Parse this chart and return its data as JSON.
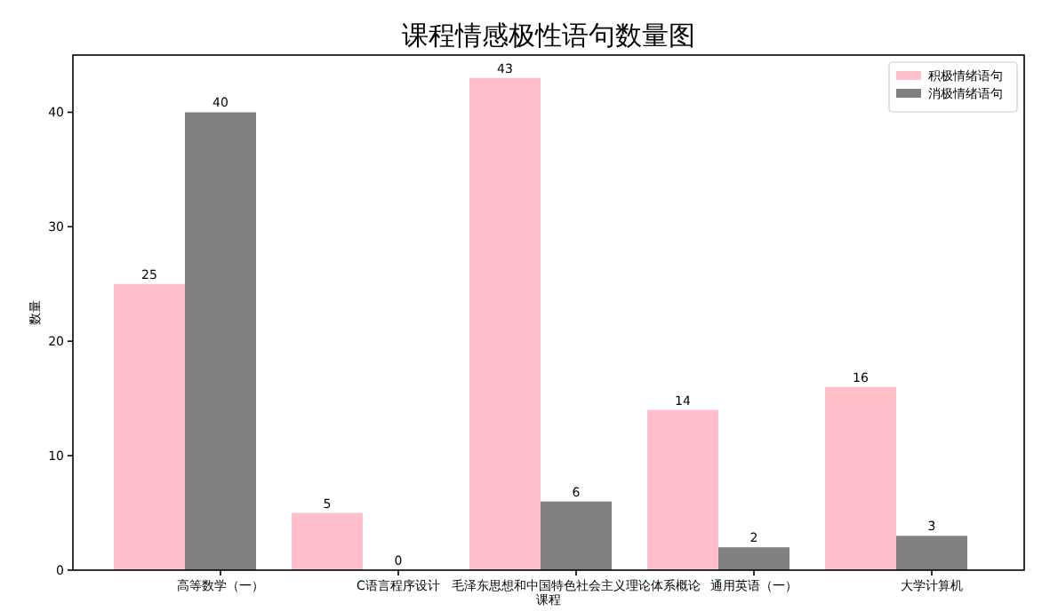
{
  "chart_data": {
    "type": "bar",
    "title": "课程情感极性语句数量图",
    "xlabel": "课程",
    "ylabel": "数量",
    "categories": [
      "高等数学（一）",
      "C语言程序设计",
      "毛泽东思想和中国特色社会主义理论体系概论",
      "通用英语（一）",
      "大学计算机"
    ],
    "series": [
      {
        "name": "积极情绪语句",
        "color": "#ffc0cb",
        "values": [
          25,
          5,
          43,
          14,
          16
        ]
      },
      {
        "name": "消极情绪语句",
        "color": "#808080",
        "values": [
          40,
          0,
          6,
          2,
          3
        ]
      }
    ],
    "ylim": [
      0,
      45
    ],
    "yticks": [
      0,
      10,
      20,
      30,
      40
    ],
    "data_labels": true,
    "legend": "top right",
    "grid": false
  }
}
